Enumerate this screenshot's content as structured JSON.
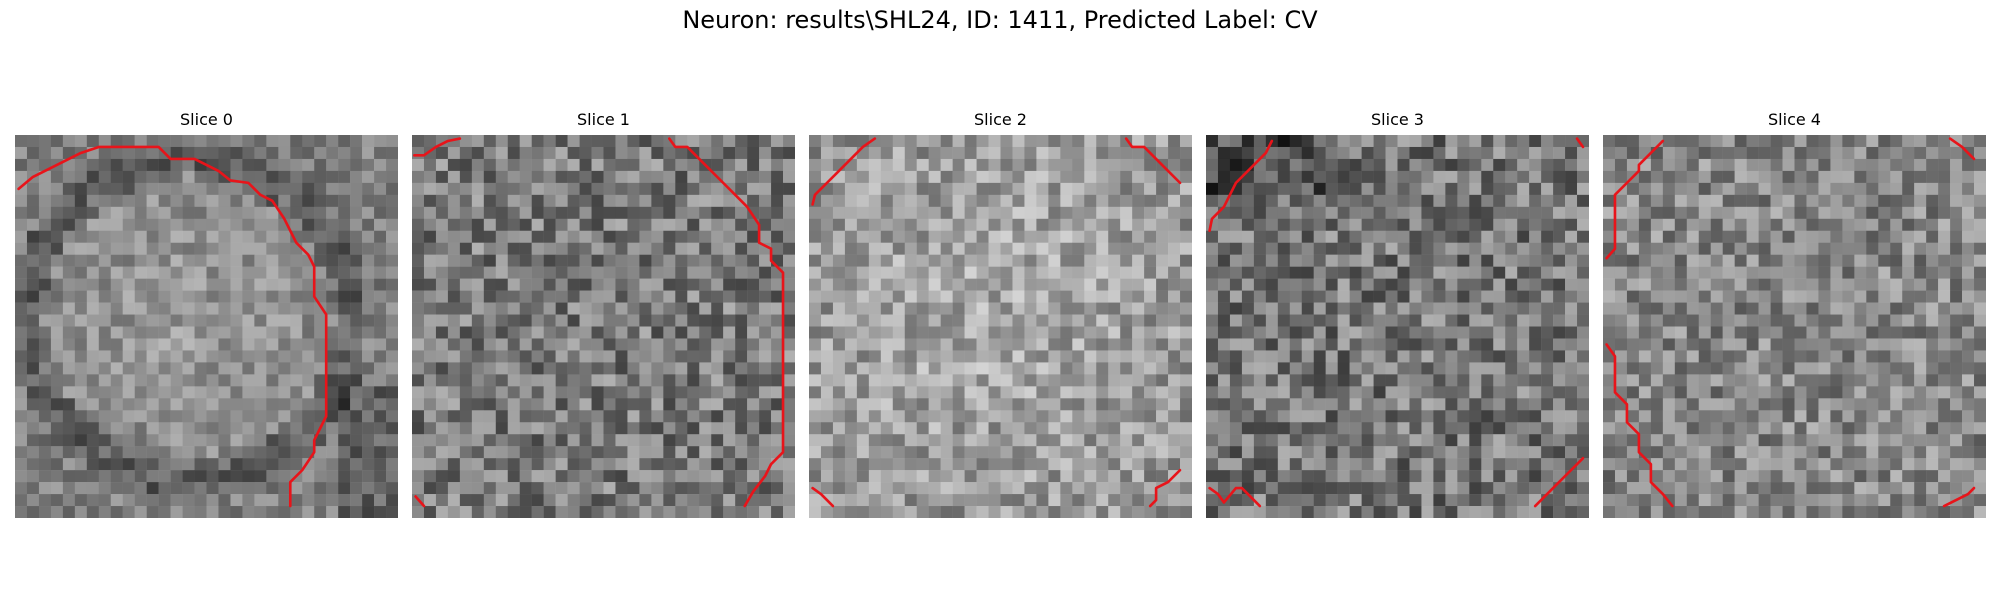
{
  "figure": {
    "title": "Neuron: results\\SHL24, ID: 1411, Predicted Label: CV"
  },
  "slices": [
    {
      "title": "Slice 0"
    },
    {
      "title": "Slice 1"
    },
    {
      "title": "Slice 2"
    },
    {
      "title": "Slice 3"
    },
    {
      "title": "Slice 4"
    }
  ],
  "colors": {
    "contour": "#e8141a",
    "background": "#ffffff"
  },
  "image": {
    "grid_size": 32,
    "colormap": "grayscale"
  }
}
